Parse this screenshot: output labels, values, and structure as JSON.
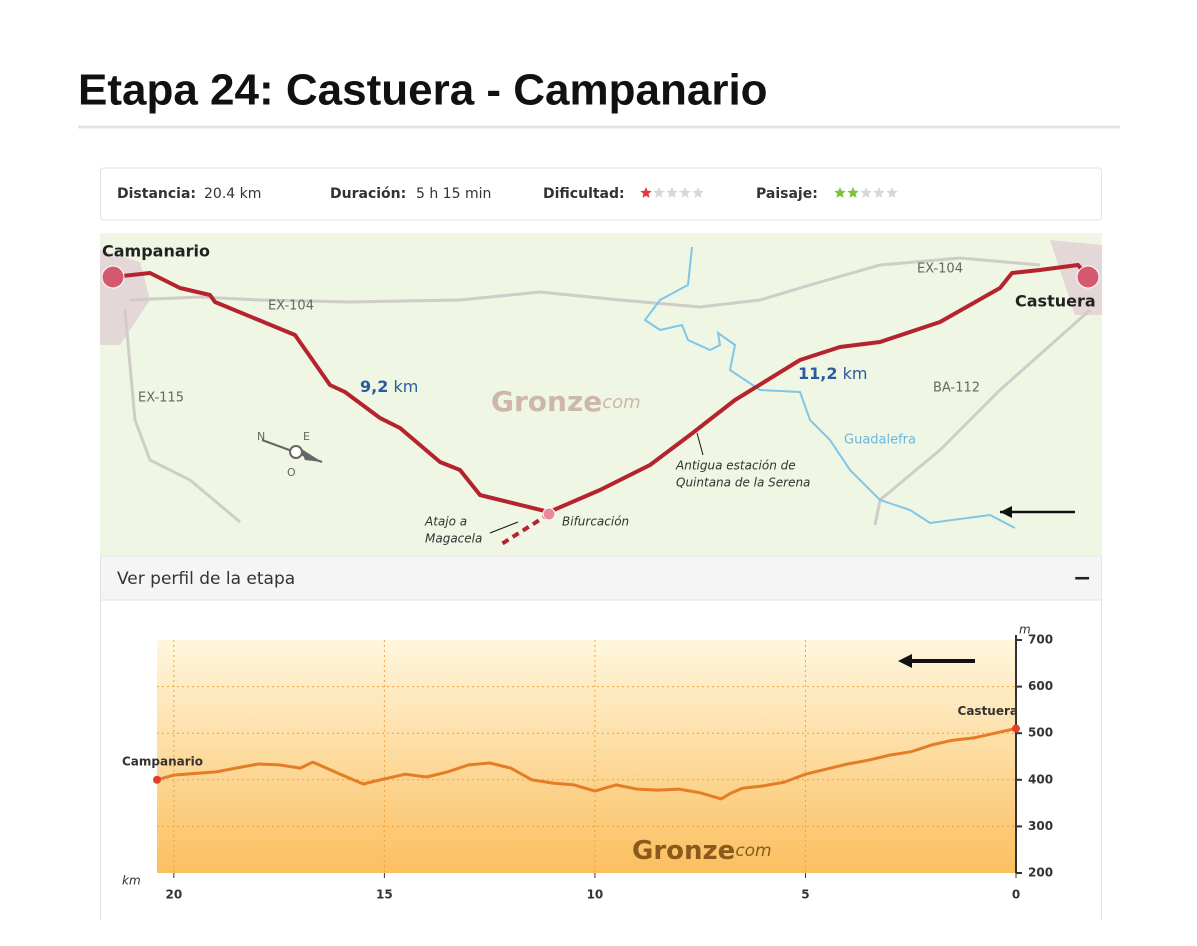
{
  "header": {
    "title": "Etapa 24: Castuera - Campanario"
  },
  "stats": {
    "distance_label": "Distancia:",
    "distance": "20.4 km",
    "duration_label": "Duración:",
    "duration": "5 h 15 min",
    "difficulty_label": "Dificultad:",
    "difficulty_stars": 1,
    "scenery_label": "Paisaje:",
    "scenery_stars": 2,
    "stars_max": 5
  },
  "map": {
    "start": "Campanario",
    "end": "Castuera",
    "roads": [
      "EX-104",
      "EX-104",
      "EX-115",
      "BA-112"
    ],
    "river": "Guadalefra",
    "segments": [
      {
        "value": "9,2",
        "unit": "km"
      },
      {
        "value": "11,2",
        "unit": "km"
      }
    ],
    "watermark": [
      "Gronze",
      "com"
    ],
    "junction": "Bifurcación",
    "shortcut": [
      "Atajo a",
      "Magacela"
    ],
    "station": [
      "Antigua estación de",
      "Quintana de la Serena"
    ],
    "compass": [
      "N",
      "E",
      "O"
    ]
  },
  "accordion": {
    "title": "Ver perfil de la etapa",
    "toggle": "−"
  },
  "chart_data": {
    "type": "line",
    "color": "#e57c26",
    "x": [
      20.4,
      20,
      19,
      18,
      17.5,
      17,
      16.7,
      16,
      15.5,
      15,
      14.5,
      14,
      13.5,
      13,
      12.5,
      12,
      11.5,
      11,
      10.5,
      10,
      9.5,
      9,
      8.5,
      8,
      7.5,
      7,
      6.8,
      6.5,
      6,
      5.5,
      5,
      4.5,
      4,
      3.5,
      3,
      2.5,
      2,
      1.5,
      1,
      0.5,
      0
    ],
    "values": [
      400,
      410,
      417,
      434,
      432,
      425,
      438,
      410,
      391,
      402,
      412,
      406,
      417,
      432,
      436,
      425,
      400,
      393,
      389,
      376,
      389,
      380,
      378,
      380,
      372,
      359,
      370,
      382,
      387,
      395,
      412,
      423,
      434,
      442,
      453,
      460,
      475,
      485,
      490,
      500,
      510
    ],
    "xlim": [
      20.4,
      0
    ],
    "xticks": [
      20,
      15,
      10,
      5,
      0
    ],
    "ylim": [
      200,
      700
    ],
    "yticks": [
      200,
      300,
      400,
      500,
      600,
      700
    ],
    "grid": true,
    "x_label": "km",
    "y_label": "m",
    "annotations": [
      "Campanario",
      "Castuera"
    ],
    "watermark": [
      "Gronze",
      "com"
    ]
  }
}
